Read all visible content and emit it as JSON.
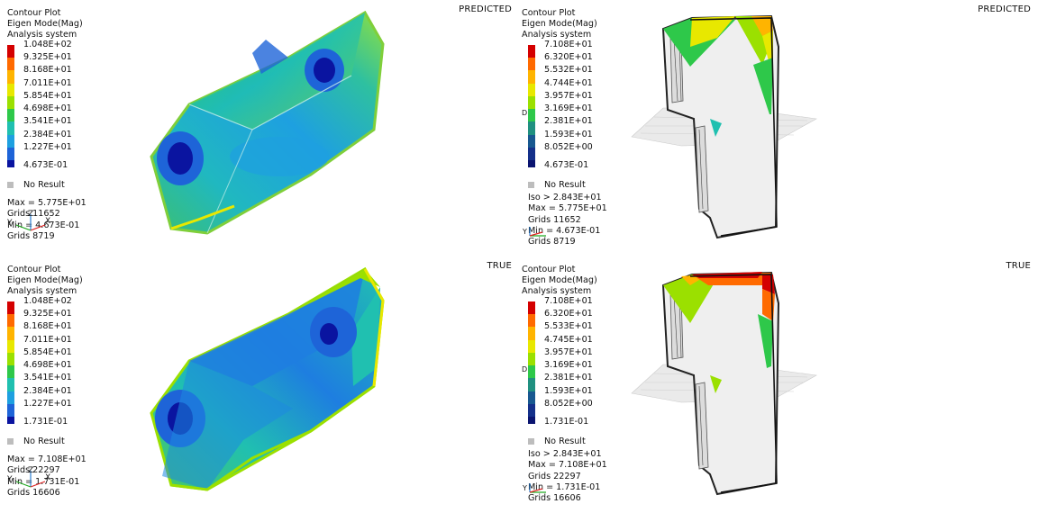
{
  "panels": [
    {
      "tag": "PREDICTED",
      "header": [
        "Contour Plot",
        "Eigen Mode(Mag)",
        "Analysis system"
      ],
      "scale": [
        "1.048E+02",
        "9.325E+01",
        "8.168E+01",
        "7.011E+01",
        "5.854E+01",
        "4.698E+01",
        "3.541E+01",
        "2.384E+01",
        "1.227E+01",
        "4.673E-01"
      ],
      "no_result": "No Result",
      "stats": [
        "Max = 5.775E+01",
        "Grids 11652",
        "Min = 4.673E-01",
        "Grids 8719"
      ],
      "triad": [
        "Y",
        "Z",
        "X"
      ]
    },
    {
      "tag": "PREDICTED",
      "header": [
        "Contour Plot",
        "Eigen Mode(Mag)",
        "Analysis system"
      ],
      "scale": [
        "7.108E+01",
        "6.320E+01",
        "5.532E+01",
        "4.744E+01",
        "3.957E+01",
        "3.169E+01",
        "2.381E+01",
        "1.593E+01",
        "8.052E+00",
        "4.673E-01"
      ],
      "no_result": "No Result",
      "stats": [
        "Iso > 2.843E+01",
        "Max = 5.775E+01",
        "Grids 11652",
        "Min = 4.673E-01",
        "Grids 8719"
      ],
      "triad": [
        "Y",
        "Z",
        "X"
      ],
      "marker": "D"
    },
    {
      "tag": "TRUE",
      "header": [
        "Contour Plot",
        "Eigen Mode(Mag)",
        "Analysis system"
      ],
      "scale": [
        "1.048E+02",
        "9.325E+01",
        "8.168E+01",
        "7.011E+01",
        "5.854E+01",
        "4.698E+01",
        "3.541E+01",
        "2.384E+01",
        "1.227E+01",
        "1.731E-01"
      ],
      "no_result": "No Result",
      "stats": [
        "Max = 7.108E+01",
        "Grids 22297",
        "Min = 1.731E-01",
        "Grids 16606"
      ],
      "triad": [
        "Y",
        "Z",
        "X"
      ]
    },
    {
      "tag": "TRUE",
      "header": [
        "Contour Plot",
        "Eigen Mode(Mag)",
        "Analysis system"
      ],
      "scale": [
        "7.108E+01",
        "6.320E+01",
        "5.533E+01",
        "4.745E+01",
        "3.957E+01",
        "3.169E+01",
        "2.381E+01",
        "1.593E+01",
        "8.052E+00",
        "1.731E-01"
      ],
      "no_result": "No Result",
      "stats": [
        "Iso > 2.843E+01",
        "Max = 7.108E+01",
        "Grids 22297",
        "Min = 1.731E-01",
        "Grids 16606"
      ],
      "triad": [
        "Y",
        "Z",
        "X"
      ],
      "marker": "D"
    }
  ],
  "colors": {
    "scale_bands": [
      "#d40000",
      "#ff6a00",
      "#ffb400",
      "#e8e800",
      "#9be000",
      "#2ec84a",
      "#20c0b0",
      "#1ea0e0",
      "#1e64d8",
      "#0a14a0"
    ],
    "no_result": "#bdbdbd"
  }
}
